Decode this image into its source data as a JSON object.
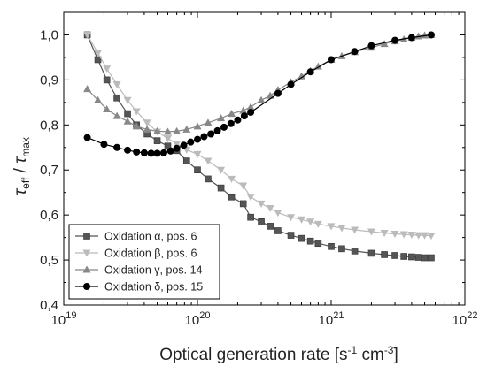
{
  "chart_data": {
    "type": "scatter",
    "x_scale": "log",
    "xlim": [
      1e+19,
      1e+22
    ],
    "ylim": [
      0.4,
      1.05
    ],
    "x_ticks": [
      {
        "value": 1e+19,
        "base": "10",
        "exp": "19"
      },
      {
        "value": 1e+20,
        "base": "10",
        "exp": "20"
      },
      {
        "value": 1e+21,
        "base": "10",
        "exp": "21"
      },
      {
        "value": 1e+22,
        "base": "10",
        "exp": "22"
      }
    ],
    "y_ticks": [
      {
        "value": 0.4,
        "label": "0,4"
      },
      {
        "value": 0.5,
        "label": "0,5"
      },
      {
        "value": 0.6,
        "label": "0,6"
      },
      {
        "value": 0.7,
        "label": "0,7"
      },
      {
        "value": 0.8,
        "label": "0,8"
      },
      {
        "value": 0.9,
        "label": "0,9"
      },
      {
        "value": 1.0,
        "label": "1,0"
      }
    ],
    "xlabel": {
      "text": "Optical generation rate [s",
      "sup1": "-1",
      "mid": " cm",
      "sup2": "-3",
      "end": "]"
    },
    "ylabel": {
      "tau1": "τ",
      "sub1": "eff",
      "slash": " / ",
      "tau2": "τ",
      "sub2": "max"
    },
    "legend_position": "bottom-left",
    "grid": false,
    "series": [
      {
        "name": "Oxidation α, pos. 6",
        "marker": "square",
        "color": "#555555",
        "x": [
          1.5e+19,
          1.8e+19,
          2.1e+19,
          2.5e+19,
          3e+19,
          3.5e+19,
          4.2e+19,
          5e+19,
          6e+19,
          7e+19,
          8.3e+19,
          1e+20,
          1.2e+20,
          1.5e+20,
          1.8e+20,
          2.2e+20,
          2.5e+20,
          3e+20,
          3.5e+20,
          4e+20,
          5e+20,
          6e+20,
          7e+20,
          8e+20,
          1e+21,
          1.2e+21,
          1.5e+21,
          2e+21,
          2.5e+21,
          3e+21,
          3.5e+21,
          4e+21,
          4.5e+21,
          5e+21,
          5.6e+21
        ],
        "y": [
          1.0,
          0.945,
          0.9,
          0.86,
          0.825,
          0.8,
          0.78,
          0.765,
          0.753,
          0.743,
          0.72,
          0.7,
          0.68,
          0.66,
          0.64,
          0.625,
          0.595,
          0.585,
          0.575,
          0.565,
          0.555,
          0.548,
          0.542,
          0.537,
          0.53,
          0.525,
          0.52,
          0.515,
          0.512,
          0.51,
          0.508,
          0.507,
          0.506,
          0.505,
          0.505
        ]
      },
      {
        "name": "Oxidation β, pos. 6",
        "marker": "triangle-down",
        "color": "#bbbbbb",
        "x": [
          1.5e+19,
          1.8e+19,
          2.1e+19,
          2.5e+19,
          3e+19,
          3.5e+19,
          4.2e+19,
          5e+19,
          6e+19,
          7e+19,
          8.3e+19,
          1e+20,
          1.2e+20,
          1.5e+20,
          1.8e+20,
          2.2e+20,
          2.5e+20,
          3e+20,
          3.5e+20,
          4e+20,
          5e+20,
          6e+20,
          7e+20,
          8e+20,
          1e+21,
          1.2e+21,
          1.5e+21,
          2e+21,
          2.5e+21,
          3e+21,
          3.5e+21,
          4e+21,
          4.5e+21,
          5e+21,
          5.6e+21
        ],
        "y": [
          1.0,
          0.96,
          0.925,
          0.89,
          0.855,
          0.83,
          0.805,
          0.785,
          0.77,
          0.758,
          0.745,
          0.735,
          0.72,
          0.7,
          0.68,
          0.665,
          0.64,
          0.625,
          0.615,
          0.605,
          0.595,
          0.59,
          0.585,
          0.58,
          0.575,
          0.571,
          0.567,
          0.563,
          0.56,
          0.558,
          0.557,
          0.556,
          0.555,
          0.555,
          0.554
        ]
      },
      {
        "name": "Oxidation γ, pos. 14",
        "marker": "triangle-up",
        "color": "#888888",
        "x": [
          1.5e+19,
          1.8e+19,
          2.1e+19,
          2.5e+19,
          3e+19,
          3.5e+19,
          4.2e+19,
          5e+19,
          6e+19,
          7e+19,
          8.3e+19,
          1e+20,
          1.2e+20,
          1.5e+20,
          1.8e+20,
          2.2e+20,
          2.5e+20,
          3e+20,
          3.5e+20,
          4e+20,
          5e+20,
          6e+20,
          7e+20,
          8e+20,
          1e+21,
          1.2e+21,
          1.5e+21,
          2e+21,
          2.5e+21,
          3e+21,
          3.5e+21,
          4e+21,
          4.5e+21,
          5e+21,
          5.6e+21
        ],
        "y": [
          0.88,
          0.855,
          0.835,
          0.82,
          0.808,
          0.797,
          0.79,
          0.786,
          0.785,
          0.786,
          0.79,
          0.797,
          0.805,
          0.815,
          0.825,
          0.832,
          0.84,
          0.855,
          0.865,
          0.878,
          0.895,
          0.908,
          0.92,
          0.93,
          0.945,
          0.953,
          0.962,
          0.972,
          0.98,
          0.986,
          0.99,
          0.994,
          0.997,
          0.999,
          1.0
        ]
      },
      {
        "name": "Oxidation δ, pos. 15",
        "marker": "circle",
        "color": "#000000",
        "x": [
          1.5e+19,
          2e+19,
          2.5e+19,
          3e+19,
          3.5e+19,
          4e+19,
          4.5e+19,
          5e+19,
          5.6e+19,
          6.3e+19,
          7e+19,
          7.9e+19,
          8.9e+19,
          1e+20,
          1.12e+20,
          1.26e+20,
          1.41e+20,
          1.58e+20,
          1.78e+20,
          2e+20,
          2.24e+20,
          2.5e+20,
          4e+20,
          5e+20,
          7e+20,
          1e+21,
          1.5e+21,
          2e+21,
          3e+21,
          4e+21,
          5.6e+21
        ],
        "y": [
          0.772,
          0.757,
          0.75,
          0.744,
          0.74,
          0.738,
          0.737,
          0.737,
          0.738,
          0.742,
          0.748,
          0.755,
          0.762,
          0.768,
          0.774,
          0.78,
          0.787,
          0.795,
          0.803,
          0.811,
          0.82,
          0.828,
          0.87,
          0.89,
          0.918,
          0.945,
          0.963,
          0.976,
          0.988,
          0.994,
          1.0
        ]
      }
    ]
  }
}
